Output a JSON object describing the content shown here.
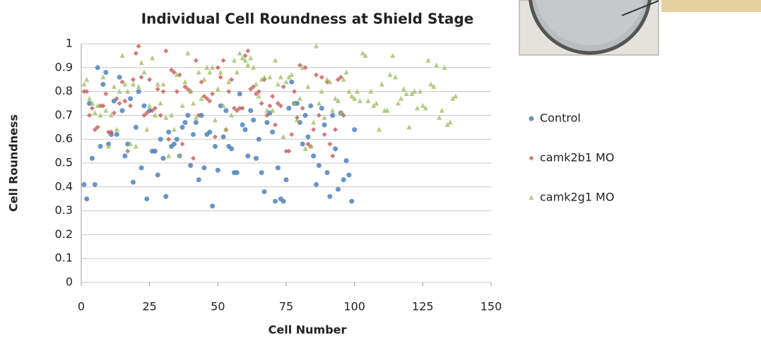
{
  "chart_data": {
    "type": "scatter",
    "title": "Individual Cell Roundness at Shield Stage",
    "x_label": "Cell Number",
    "y_label": "Cell Roundness",
    "xlim": [
      0,
      150
    ],
    "xticks": [
      0,
      25,
      50,
      75,
      100,
      125,
      150
    ],
    "ylim": [
      0,
      1
    ],
    "yticks": [
      0,
      0.1,
      0.2,
      0.3,
      0.4,
      0.5,
      0.6,
      0.7,
      0.8,
      0.9,
      1
    ],
    "grid": true,
    "legend": "right",
    "series": [
      {
        "name": "Control",
        "color": "#4f81bd",
        "marker": "circle",
        "x": [
          1,
          2,
          3,
          4,
          5,
          6,
          7,
          8,
          9,
          10,
          11,
          12,
          13,
          14,
          15,
          16,
          17,
          18,
          19,
          20,
          21,
          22,
          23,
          24,
          25,
          26,
          27,
          28,
          29,
          30,
          31,
          32,
          33,
          34,
          35,
          36,
          37,
          38,
          39,
          40,
          41,
          42,
          43,
          44,
          45,
          46,
          47,
          48,
          49,
          50,
          51,
          52,
          53,
          54,
          55,
          56,
          57,
          58,
          59,
          60,
          61,
          62,
          63,
          64,
          65,
          66,
          67,
          68,
          69,
          70,
          71,
          72,
          73,
          74,
          75,
          76,
          77,
          78,
          79,
          80,
          81,
          82,
          83,
          84,
          85,
          86,
          87,
          88,
          89,
          90,
          91,
          92,
          93,
          94,
          95,
          96,
          97,
          98,
          99,
          100
        ],
        "values": [
          0.41,
          0.35,
          0.75,
          0.52,
          0.41,
          0.9,
          0.57,
          0.83,
          0.88,
          0.58,
          0.62,
          0.76,
          0.62,
          0.86,
          0.72,
          0.53,
          0.58,
          0.77,
          0.42,
          0.65,
          0.8,
          0.48,
          0.74,
          0.35,
          0.72,
          0.55,
          0.55,
          0.45,
          0.6,
          0.52,
          0.36,
          0.63,
          0.57,
          0.58,
          0.6,
          0.53,
          0.65,
          0.67,
          0.7,
          0.49,
          0.62,
          0.67,
          0.43,
          0.7,
          0.48,
          0.62,
          0.63,
          0.32,
          0.57,
          0.47,
          0.74,
          0.61,
          0.72,
          0.57,
          0.56,
          0.46,
          0.46,
          0.79,
          0.66,
          0.64,
          0.53,
          0.72,
          0.68,
          0.52,
          0.6,
          0.46,
          0.38,
          0.67,
          0.71,
          0.63,
          0.34,
          0.48,
          0.35,
          0.34,
          0.43,
          0.73,
          0.84,
          0.75,
          0.75,
          0.67,
          0.58,
          0.7,
          0.61,
          0.74,
          0.53,
          0.41,
          0.49,
          0.73,
          0.66,
          0.46,
          0.36,
          0.7,
          0.56,
          0.39,
          0.71,
          0.43,
          0.51,
          0.45,
          0.34,
          0.64
        ]
      },
      {
        "name": "camk2b1 MO",
        "color": "#c0504d",
        "marker": "diamond",
        "x": [
          1,
          2,
          3,
          4,
          5,
          6,
          7,
          8,
          9,
          10,
          11,
          12,
          13,
          14,
          15,
          16,
          17,
          18,
          19,
          20,
          21,
          22,
          23,
          24,
          25,
          26,
          27,
          28,
          29,
          30,
          31,
          32,
          33,
          34,
          35,
          36,
          37,
          38,
          39,
          40,
          41,
          42,
          43,
          44,
          45,
          46,
          47,
          48,
          49,
          50,
          51,
          52,
          53,
          54,
          55,
          56,
          57,
          58,
          59,
          60,
          61,
          62,
          63,
          64,
          65,
          66,
          67,
          68,
          69,
          70,
          71,
          72,
          73,
          74,
          75,
          76,
          77,
          78,
          79,
          80,
          81,
          82,
          83,
          84,
          85,
          86,
          87,
          88,
          89,
          90,
          91,
          92,
          93,
          94,
          95,
          96
        ],
        "values": [
          0.8,
          0.8,
          0.7,
          0.73,
          0.64,
          0.65,
          0.74,
          0.74,
          0.79,
          0.63,
          0.63,
          0.71,
          0.77,
          0.75,
          0.84,
          0.76,
          0.55,
          0.74,
          0.85,
          0.96,
          0.99,
          0.86,
          0.7,
          0.71,
          0.85,
          0.72,
          0.73,
          0.81,
          0.7,
          0.8,
          0.97,
          0.6,
          0.89,
          0.88,
          0.8,
          0.87,
          0.58,
          0.82,
          0.81,
          0.8,
          0.52,
          0.93,
          0.7,
          0.84,
          0.78,
          0.77,
          0.76,
          0.79,
          0.61,
          0.9,
          0.86,
          0.93,
          0.64,
          0.8,
          0.85,
          0.73,
          0.72,
          0.73,
          0.73,
          0.95,
          0.97,
          0.81,
          0.82,
          0.79,
          0.8,
          0.75,
          0.85,
          0.7,
          0.74,
          0.78,
          0.66,
          0.75,
          0.74,
          0.82,
          0.55,
          0.55,
          0.62,
          0.8,
          0.69,
          0.91,
          0.73,
          0.9,
          0.58,
          0.57,
          0.64,
          0.87,
          0.7,
          0.86,
          0.62,
          0.84,
          0.58,
          0.53,
          0.64,
          0.85,
          0.86,
          0.7
        ]
      },
      {
        "name": "camk2g1 MO",
        "color": "#9bbb59",
        "marker": "triangle",
        "x": [
          1,
          2,
          3,
          4,
          5,
          6,
          7,
          8,
          9,
          10,
          11,
          12,
          13,
          14,
          15,
          16,
          17,
          18,
          19,
          20,
          21,
          22,
          23,
          24,
          25,
          26,
          27,
          28,
          29,
          30,
          31,
          32,
          33,
          34,
          35,
          36,
          37,
          38,
          39,
          40,
          41,
          42,
          43,
          44,
          45,
          46,
          47,
          48,
          49,
          50,
          51,
          52,
          53,
          54,
          55,
          56,
          57,
          58,
          59,
          60,
          61,
          62,
          63,
          64,
          65,
          66,
          67,
          68,
          69,
          70,
          71,
          72,
          73,
          74,
          75,
          76,
          77,
          78,
          79,
          80,
          81,
          82,
          83,
          84,
          85,
          86,
          87,
          88,
          89,
          90,
          91,
          92,
          93,
          94,
          95,
          96,
          97,
          98,
          99,
          100,
          101,
          102,
          103,
          104,
          105,
          106,
          107,
          108,
          109,
          110,
          111,
          112,
          113,
          114,
          115,
          116,
          117,
          118,
          119,
          120,
          121,
          122,
          123,
          124,
          125,
          126,
          127,
          128,
          129,
          130,
          131,
          132,
          133,
          134,
          135,
          136,
          137
        ],
        "values": [
          0.83,
          0.85,
          0.77,
          0.75,
          0.71,
          0.74,
          0.7,
          0.86,
          0.72,
          0.57,
          0.7,
          0.82,
          0.64,
          0.8,
          0.95,
          0.83,
          0.8,
          0.58,
          0.83,
          0.57,
          0.82,
          0.92,
          0.88,
          0.64,
          0.74,
          0.94,
          0.7,
          0.83,
          0.75,
          0.83,
          0.69,
          0.53,
          0.7,
          0.64,
          0.87,
          0.53,
          0.74,
          0.84,
          0.96,
          0.8,
          0.75,
          0.69,
          0.88,
          0.77,
          0.85,
          0.9,
          0.88,
          0.9,
          0.68,
          0.81,
          0.88,
          0.74,
          0.64,
          0.84,
          0.7,
          0.93,
          0.88,
          0.96,
          0.94,
          0.93,
          0.91,
          0.94,
          0.9,
          0.83,
          0.78,
          0.85,
          0.86,
          0.72,
          0.86,
          0.72,
          0.93,
          0.83,
          0.86,
          0.61,
          0.84,
          0.86,
          0.87,
          0.75,
          0.68,
          0.77,
          0.9,
          0.56,
          0.82,
          0.57,
          0.67,
          0.99,
          0.75,
          0.8,
          0.69,
          0.85,
          0.84,
          0.72,
          0.77,
          0.76,
          0.71,
          0.85,
          0.88,
          0.8,
          0.78,
          0.77,
          0.8,
          0.76,
          0.96,
          0.95,
          0.76,
          0.8,
          0.74,
          0.75,
          0.64,
          0.83,
          0.72,
          0.72,
          0.87,
          0.95,
          0.86,
          0.75,
          0.77,
          0.81,
          0.79,
          0.65,
          0.79,
          0.8,
          0.73,
          0.8,
          0.74,
          0.73,
          0.93,
          0.83,
          0.82,
          0.91,
          0.69,
          0.72,
          0.9,
          0.66,
          0.67,
          0.77,
          0.78
        ]
      }
    ]
  }
}
